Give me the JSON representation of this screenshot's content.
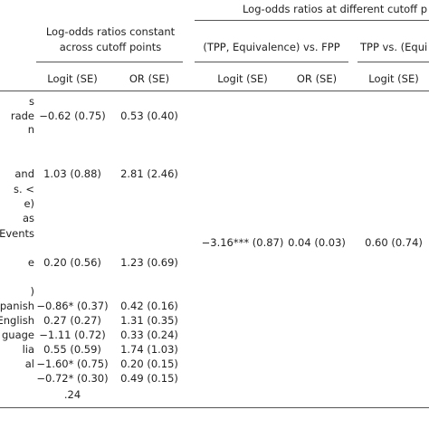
{
  "header": {
    "group_right": "Log-odds ratios at different cutoff p",
    "group_left_line1": "Log-odds ratios constant",
    "group_left_line2": "across cutoff points",
    "sub_a": "(TPP, Equivalence) vs. FPP",
    "sub_b": "TPP vs. (Equi",
    "columns": [
      "Logit (SE)",
      "OR (SE)",
      "Logit (SE)",
      "OR (SE)",
      "Logit (SE)"
    ]
  },
  "table": {
    "rows": [
      [
        "s",
        null,
        null,
        null,
        null,
        null
      ],
      [
        "rade",
        "−0.62 (0.75)",
        "0.53 (0.40)",
        null,
        null,
        null
      ],
      [
        "n",
        null,
        null,
        null,
        null,
        null
      ],
      [
        "and",
        "1.03 (0.88)",
        "2.81 (2.46)",
        null,
        null,
        null
      ],
      [
        "s. <",
        null,
        null,
        null,
        null,
        null
      ],
      [
        "e)",
        null,
        null,
        null,
        null,
        null
      ],
      [
        "as",
        null,
        null,
        null,
        null,
        null
      ],
      [
        "Events",
        null,
        null,
        null,
        null,
        null
      ],
      [
        null,
        null,
        null,
        "−3.16*** (0.87)",
        "0.04 (0.03)",
        "0.60 (0.74)"
      ],
      [
        "e",
        "0.20 (0.56)",
        "1.23 (0.69)",
        null,
        null,
        null
      ],
      [
        ")",
        null,
        null,
        null,
        null,
        null
      ],
      [
        "Spanish",
        "−0.86* (0.37)",
        "0.42 (0.16)",
        null,
        null,
        null
      ],
      [
        "English",
        "0.27 (0.27)",
        "1.31 (0.35)",
        null,
        null,
        null
      ],
      [
        "guage",
        "−1.11 (0.72)",
        "0.33 (0.24)",
        null,
        null,
        null
      ],
      [
        "lia",
        "0.55 (0.59)",
        "1.74 (1.03)",
        null,
        null,
        null
      ],
      [
        "al",
        "−1.60* (0.75)",
        "0.20 (0.15)",
        null,
        null,
        null
      ],
      [
        null,
        "−0.72* (0.30)",
        "0.49 (0.15)",
        null,
        null,
        null
      ],
      [
        null,
        ".24",
        null,
        null,
        null,
        null
      ]
    ]
  }
}
